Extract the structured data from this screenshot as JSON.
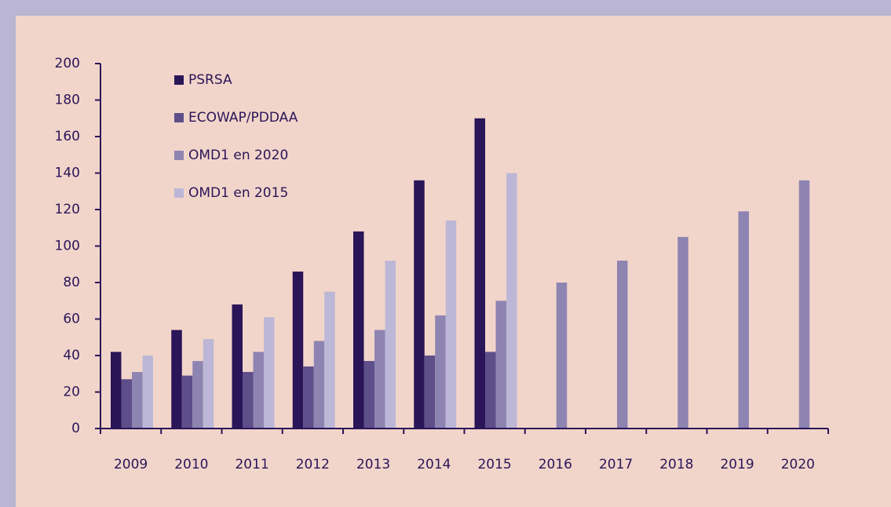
{
  "chart_data": {
    "type": "bar",
    "categories": [
      "2009",
      "2010",
      "2011",
      "2012",
      "2013",
      "2014",
      "2015",
      "2016",
      "2017",
      "2018",
      "2019",
      "2020"
    ],
    "series": [
      {
        "name": "PSRSA",
        "color": "#2a1558",
        "values": [
          42,
          54,
          68,
          86,
          108,
          136,
          170,
          null,
          null,
          null,
          null,
          null
        ]
      },
      {
        "name": "ECOWAP/PDDAA",
        "color": "#5e4f8a",
        "values": [
          27,
          29,
          31,
          34,
          37,
          40,
          42,
          null,
          null,
          null,
          null,
          null
        ]
      },
      {
        "name": "OMD1 en 2020",
        "color": "#8e84b2",
        "values": [
          31,
          37,
          42,
          48,
          54,
          62,
          70,
          80,
          92,
          105,
          119,
          136
        ]
      },
      {
        "name": "OMD1 en 2015",
        "color": "#bcb7d6",
        "values": [
          40,
          49,
          61,
          75,
          92,
          114,
          140,
          null,
          null,
          null,
          null,
          null
        ]
      }
    ],
    "ylim": [
      0,
      200
    ],
    "yticks": [
      0,
      20,
      40,
      60,
      80,
      100,
      120,
      140,
      160,
      180,
      200
    ],
    "legend": "upper-left"
  }
}
